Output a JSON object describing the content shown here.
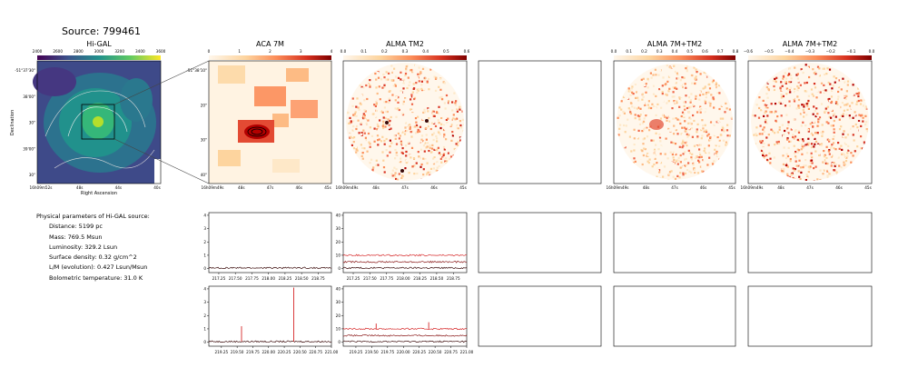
{
  "source_title": "Source: 799461",
  "panels": {
    "higal": {
      "title": "Hi-GAL",
      "cbar_ticks": [
        "2400",
        "2600",
        "2800",
        "3000",
        "3200",
        "3400",
        "3600"
      ],
      "xlabel": "Right Ascension",
      "ylabel": "Declination",
      "yticks": [
        "-51°37'30\"",
        "38'00\"",
        "30\"",
        "39'00\"",
        "30\""
      ],
      "xticks": [
        "16h09m52s",
        "48s",
        "44s",
        "40s"
      ]
    },
    "aca7m": {
      "title": "ACA 7M",
      "cbar_ticks": [
        "0",
        "1",
        "2",
        "3",
        "4"
      ],
      "yticks": [
        "-51°38'10\"",
        "20\"",
        "30\"",
        "40\""
      ],
      "xticks": [
        "16h09m49s",
        "48s",
        "47s",
        "46s",
        "45s"
      ]
    },
    "almatm2": {
      "title": "ALMA TM2",
      "cbar_ticks": [
        "0.0",
        "0.1",
        "0.2",
        "0.3",
        "0.4",
        "0.5",
        "0.6"
      ],
      "xticks": [
        "16h09m49s",
        "48s",
        "47s",
        "46s",
        "45s"
      ]
    },
    "alma7mtm2": {
      "title": "ALMA 7M+TM2",
      "cbar_ticks": [
        "0.0",
        "0.1",
        "0.2",
        "0.3",
        "0.4",
        "0.5",
        "0.6",
        "0.7",
        "0.8"
      ],
      "xticks": [
        "16h09m49s",
        "48s",
        "47s",
        "46s",
        "45s"
      ]
    },
    "alma7mtm2b": {
      "title": "ALMA 7M+TM2",
      "cbar_ticks": [
        "−0.6",
        "−0.5",
        "−0.4",
        "−0.3",
        "−0.2",
        "−0.1",
        "0.0"
      ],
      "xticks": [
        "16h09m49s",
        "48s",
        "47s",
        "46s",
        "45s"
      ]
    }
  },
  "physical": {
    "heading": "Physical parameters of Hi-GAL source:",
    "lines": [
      "Distance: 5199 pc",
      "Mass: 769.5 Msun",
      "Luminosity: 329.2 Lsun",
      "Surface density: 0.32 g/cm^2",
      "L/M (evolution): 0.427 Lsun/Msun",
      "Bolometric temperature: 31.0 K"
    ]
  },
  "chart_data": [
    {
      "type": "line",
      "panel": "spectrum-aca-row1",
      "x_ticks": [
        "217.25",
        "217.50",
        "217.75",
        "218.00",
        "218.25",
        "218.50",
        "218.75"
      ],
      "y_ticks": [
        "0",
        "1",
        "2",
        "3",
        "4"
      ],
      "xlim": [
        217.1,
        218.95
      ],
      "ylim": [
        -0.3,
        4.2
      ],
      "series": [
        {
          "color": "#3a0a0a",
          "x": [
            217.1,
            218.95
          ],
          "y": [
            0.05,
            0.05
          ]
        }
      ]
    },
    {
      "type": "line",
      "panel": "spectrum-tm2-row1",
      "x_ticks": [
        "217.25",
        "217.50",
        "217.75",
        "218.00",
        "218.25",
        "218.50",
        "218.75"
      ],
      "y_ticks": [
        "0",
        "10",
        "20",
        "30",
        "40"
      ],
      "xlim": [
        217.1,
        218.95
      ],
      "ylim": [
        -3,
        42
      ],
      "series": [
        {
          "color": "#d62728",
          "x": [
            217.1,
            218.95
          ],
          "y": [
            10,
            10
          ]
        },
        {
          "color": "#8b1a1a",
          "x": [
            217.1,
            218.95
          ],
          "y": [
            5,
            5
          ]
        },
        {
          "color": "#3a0a0a",
          "x": [
            217.1,
            218.95
          ],
          "y": [
            0.5,
            0.5
          ]
        }
      ]
    },
    {
      "type": "line",
      "panel": "spectrum-aca-row2",
      "x_ticks": [
        "219.25",
        "219.50",
        "219.75",
        "220.00",
        "220.25",
        "220.50",
        "220.75",
        "221.00"
      ],
      "y_ticks": [
        "0",
        "1",
        "2",
        "3",
        "4"
      ],
      "xlim": [
        219.05,
        221.0
      ],
      "ylim": [
        -0.3,
        4.2
      ],
      "series": [
        {
          "color": "#3a0a0a",
          "x": [
            219.05,
            221.0
          ],
          "y": [
            0.05,
            0.05
          ]
        }
      ],
      "peaks": [
        {
          "x": 219.57,
          "y": 1.2,
          "color": "#d62728"
        },
        {
          "x": 220.4,
          "y": 4.1,
          "color": "#d62728"
        }
      ]
    },
    {
      "type": "line",
      "panel": "spectrum-tm2-row2",
      "x_ticks": [
        "219.25",
        "219.50",
        "219.75",
        "220.00",
        "220.25",
        "220.50",
        "220.75",
        "221.00"
      ],
      "y_ticks": [
        "0",
        "10",
        "20",
        "30",
        "40"
      ],
      "xlim": [
        219.05,
        221.0
      ],
      "ylim": [
        -3,
        42
      ],
      "series": [
        {
          "color": "#d62728",
          "x": [
            219.05,
            221.0
          ],
          "y": [
            10,
            10
          ]
        },
        {
          "color": "#8b1a1a",
          "x": [
            219.05,
            221.0
          ],
          "y": [
            5,
            5
          ]
        },
        {
          "color": "#3a0a0a",
          "x": [
            219.05,
            221.0
          ],
          "y": [
            0.5,
            0.5
          ]
        }
      ],
      "peaks": [
        {
          "x": 219.57,
          "y": 14,
          "color": "#d62728"
        },
        {
          "x": 220.4,
          "y": 15,
          "color": "#d62728"
        }
      ]
    }
  ]
}
